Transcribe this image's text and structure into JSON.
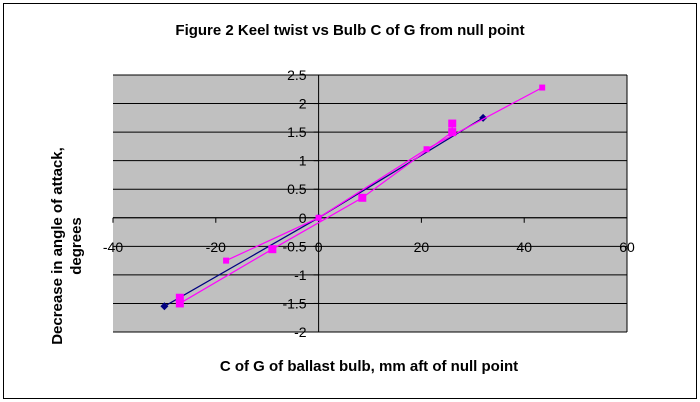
{
  "chart_data": {
    "type": "scatter",
    "title": "Figure 2 Keel twist vs Bulb C of G from null point",
    "xlabel": "C of G of ballast bulb, mm aft of null point",
    "ylabel_line1": "Decrease in angle of attack,",
    "ylabel_line2": "degrees",
    "xlim": [
      -40,
      60
    ],
    "ylim": [
      -2,
      2.5
    ],
    "x_ticks": [
      -40,
      -20,
      0,
      20,
      40,
      60
    ],
    "x_tick_labels": [
      "-40",
      "-20",
      "0",
      "20",
      "40",
      "60"
    ],
    "y_ticks": [
      2.5,
      2,
      1.5,
      1,
      0.5,
      0,
      -0.5,
      -1,
      -1.5,
      -2
    ],
    "y_tick_labels": [
      "2.5",
      "2",
      "1.5",
      "1",
      "0.5",
      "0",
      "-0.5",
      "-1",
      "-1.5",
      "-2"
    ],
    "grid": "horizontal",
    "legend": "none",
    "series": [
      {
        "color": "#000080",
        "marker": "diamond",
        "points": [
          [
            -30,
            -1.55
          ],
          [
            0,
            0
          ],
          [
            32,
            1.75
          ]
        ]
      },
      {
        "color": "#ff00ff",
        "marker": "square",
        "points": [
          [
            -27,
            -1.4
          ],
          [
            -27,
            -1.5
          ],
          [
            -9,
            -0.55
          ],
          [
            8.5,
            0.35
          ],
          [
            26,
            1.5
          ],
          [
            26,
            1.65
          ]
        ]
      },
      {
        "color": "#ff00ff",
        "marker": "square-small",
        "points": [
          [
            -18,
            -0.75
          ],
          [
            0,
            0
          ],
          [
            21,
            1.2
          ],
          [
            43.5,
            2.28
          ]
        ]
      }
    ]
  },
  "style": {
    "plot_background": "#c0c0c0",
    "gridline_color": "#000000",
    "frame_color": "#000000"
  }
}
